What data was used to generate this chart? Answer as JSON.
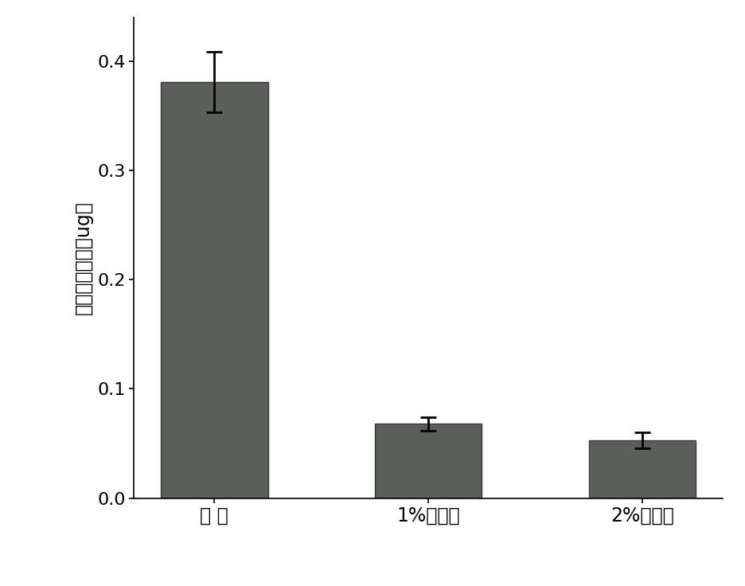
{
  "categories": [
    "对 照",
    "1%生物炭",
    "2%生物炭"
  ],
  "values": [
    0.381,
    0.068,
    0.053
  ],
  "errors": [
    0.028,
    0.006,
    0.007
  ],
  "bar_color": "#5a5f5a",
  "bar_edgecolor": "#3a3a3a",
  "ylabel": "四氯苯挥发量（ug）",
  "ylim": [
    0,
    0.44
  ],
  "yticks": [
    0,
    0.1,
    0.2,
    0.3,
    0.4
  ],
  "background_color": "#ffffff",
  "bar_width": 0.5,
  "figsize": [
    9.36,
    7.36
  ],
  "dpi": 100,
  "ylabel_fontsize": 17,
  "tick_fontsize": 16,
  "xlabel_fontsize": 17
}
